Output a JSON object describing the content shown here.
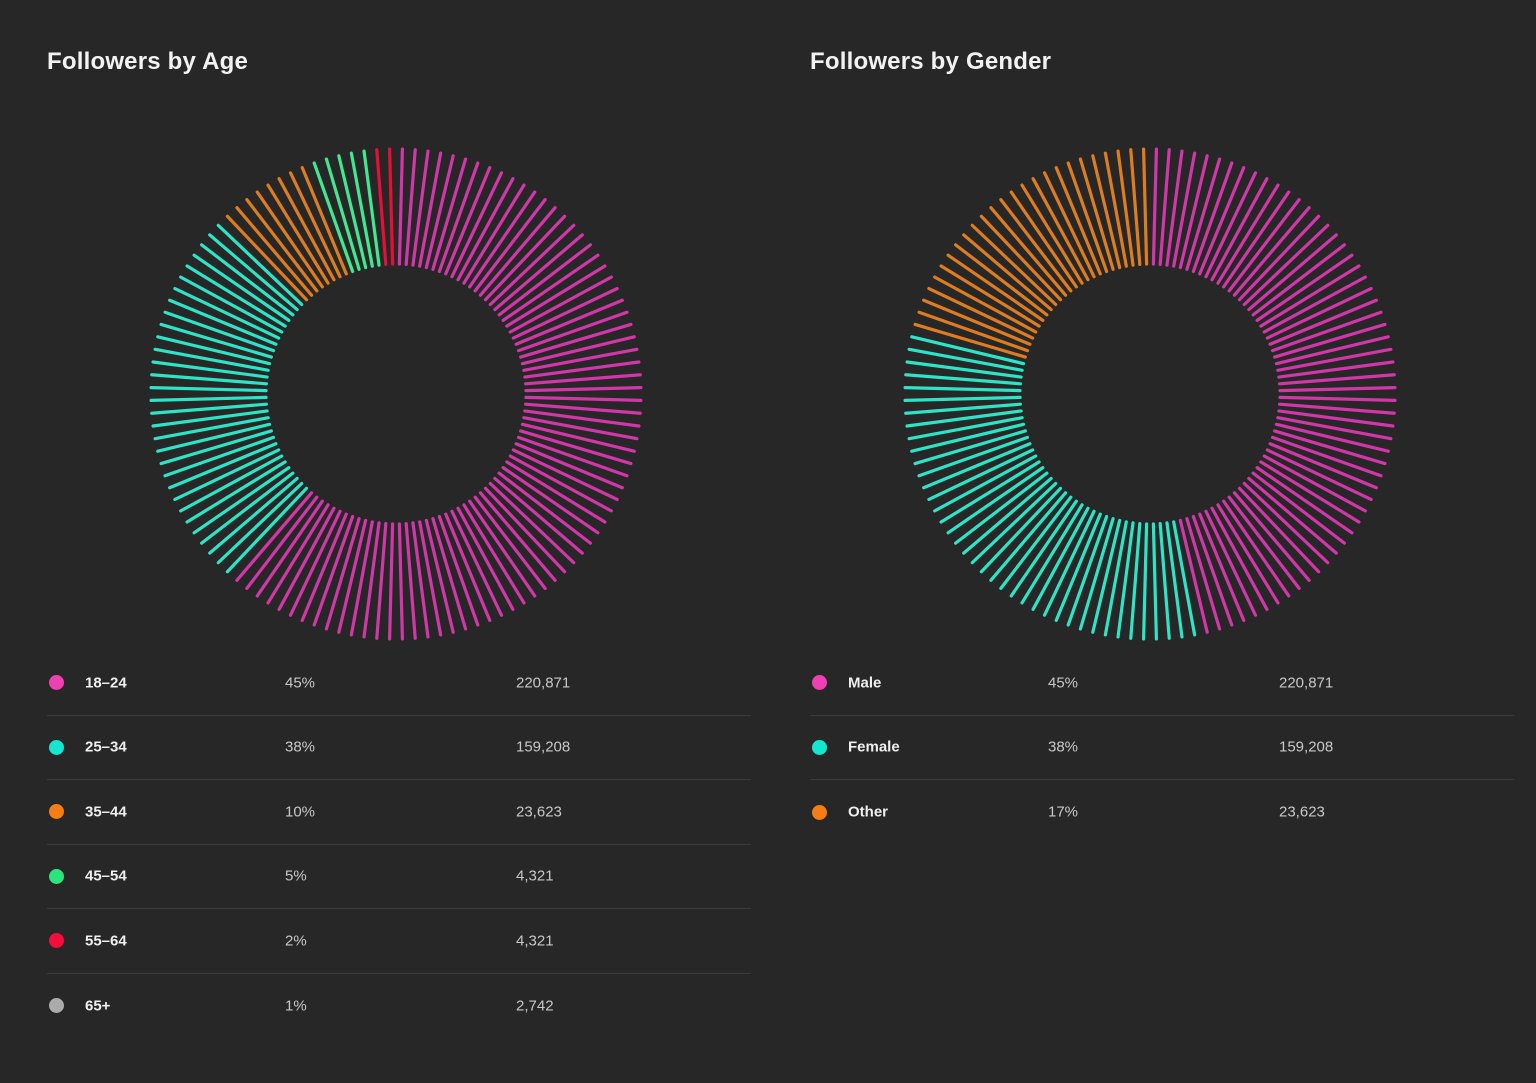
{
  "page": {
    "background_color": "#272727",
    "text_color": "#f2f2f2"
  },
  "chart_data": [
    {
      "type": "pie",
      "style": "spoke-donut",
      "title": "Followers by Age",
      "legend_position": "bottom-table",
      "categories": [
        "18–24",
        "25–34",
        "35–44",
        "45–54",
        "55–64",
        "65+"
      ],
      "values_pct": [
        45,
        38,
        10,
        5,
        2,
        1
      ],
      "counts": [
        220871,
        159208,
        23623,
        4321,
        4321,
        2742
      ],
      "segments": [
        {
          "label": "18–24",
          "pct_label": "45%",
          "count_label": "220,871",
          "dot_color": "#ee3fb3",
          "spoke_color": "#d237a9",
          "visual_sweep_deg": 222
        },
        {
          "label": "25–34",
          "pct_label": "38%",
          "count_label": "159,208",
          "dot_color": "#14e7cf",
          "spoke_color": "#2ce4c6",
          "visual_sweep_deg": 93
        },
        {
          "label": "35–44",
          "pct_label": "10%",
          "count_label": "23,623",
          "dot_color": "#f57d14",
          "spoke_color": "#de7c20",
          "visual_sweep_deg": 24
        },
        {
          "label": "45–54",
          "pct_label": "5%",
          "count_label": "4,321",
          "dot_color": "#2ce47c",
          "spoke_color": "#40e88f",
          "visual_sweep_deg": 15
        },
        {
          "label": "55–64",
          "pct_label": "2%",
          "count_label": "4,321",
          "dot_color": "#f50d3b",
          "spoke_color": "#e60f37",
          "visual_sweep_deg": 6
        },
        {
          "label": "65+",
          "pct_label": "1%",
          "count_label": "2,742",
          "dot_color": "#ababab",
          "spoke_color": "#9f9f9f",
          "visual_sweep_deg": 0
        }
      ]
    },
    {
      "type": "pie",
      "style": "spoke-donut",
      "title": "Followers by Gender",
      "legend_position": "bottom-table",
      "categories": [
        "Male",
        "Female",
        "Other"
      ],
      "values_pct": [
        45,
        38,
        17
      ],
      "counts": [
        220871,
        159208,
        23623
      ],
      "segments": [
        {
          "label": "Male",
          "pct_label": "45%",
          "count_label": "220,871",
          "dot_color": "#ee3fb3",
          "spoke_color": "#d237a9",
          "visual_sweep_deg": 168
        },
        {
          "label": "Female",
          "pct_label": "38%",
          "count_label": "159,208",
          "dot_color": "#14e7cf",
          "spoke_color": "#2ce4c6",
          "visual_sweep_deg": 117
        },
        {
          "label": "Other",
          "pct_label": "17%",
          "count_label": "23,623",
          "dot_color": "#f57d14",
          "spoke_color": "#de7c20",
          "visual_sweep_deg": 75
        }
      ]
    }
  ]
}
